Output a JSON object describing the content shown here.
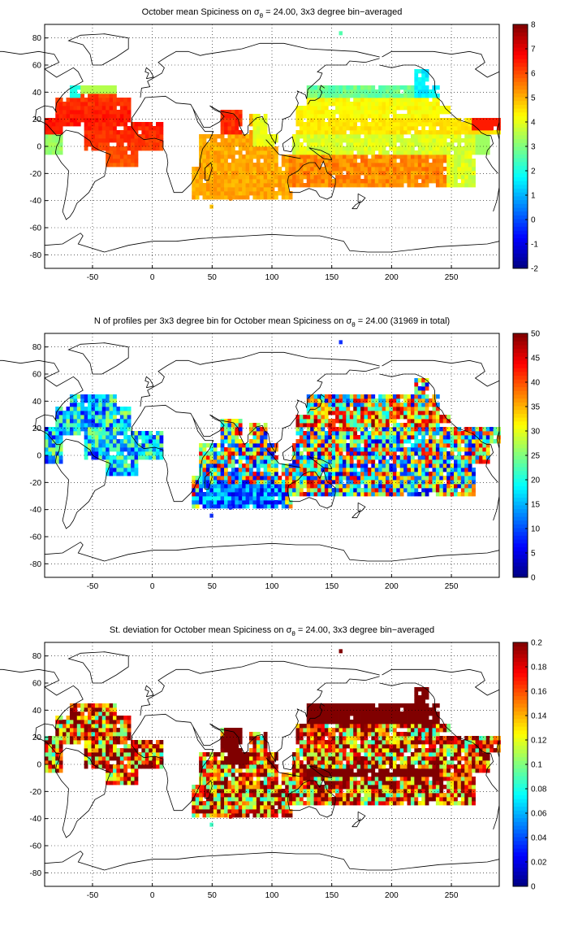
{
  "maps": [
    {
      "title_pre": "October mean Spiciness on ",
      "title_sigma": "σ",
      "title_sub": "θ",
      "title_post": " = 24.00, 3x3 degree bin−averaged",
      "colorbar": {
        "min": -2,
        "max": 8,
        "ticks": [
          "-2",
          "-1",
          "0",
          "1",
          "2",
          "3",
          "4",
          "5",
          "6",
          "7",
          "8"
        ]
      },
      "field": "spiciness"
    },
    {
      "title_pre": "N of profiles per 3x3 degree bin for October mean Spiciness on ",
      "title_sigma": "σ",
      "title_sub": "θ",
      "title_post": " = 24.00 (31969 in total)",
      "colorbar": {
        "min": 0,
        "max": 50,
        "ticks": [
          "0",
          "5",
          "10",
          "15",
          "20",
          "25",
          "30",
          "35",
          "40",
          "45",
          "50"
        ]
      },
      "field": "count"
    },
    {
      "title_pre": "St. deviation for October mean Spiciness on ",
      "title_sigma": "σ",
      "title_sub": "θ",
      "title_post": " = 24.00, 3x3 degree bin−averaged",
      "colorbar": {
        "min": 0,
        "max": 0.2,
        "ticks": [
          "0",
          "0.02",
          "0.04",
          "0.06",
          "0.08",
          "0.1",
          "0.12",
          "0.14",
          "0.16",
          "0.18",
          "0.2"
        ]
      },
      "field": "std"
    }
  ],
  "axes": {
    "x_ticks": [
      "-50",
      "0",
      "50",
      "100",
      "150",
      "200",
      "250"
    ],
    "y_ticks": [
      "80",
      "60",
      "40",
      "20",
      "0",
      "-20",
      "-40",
      "-60",
      "-80"
    ],
    "x_range": [
      -90,
      290
    ],
    "y_range": [
      -90,
      90
    ]
  },
  "colormap": "jet"
}
